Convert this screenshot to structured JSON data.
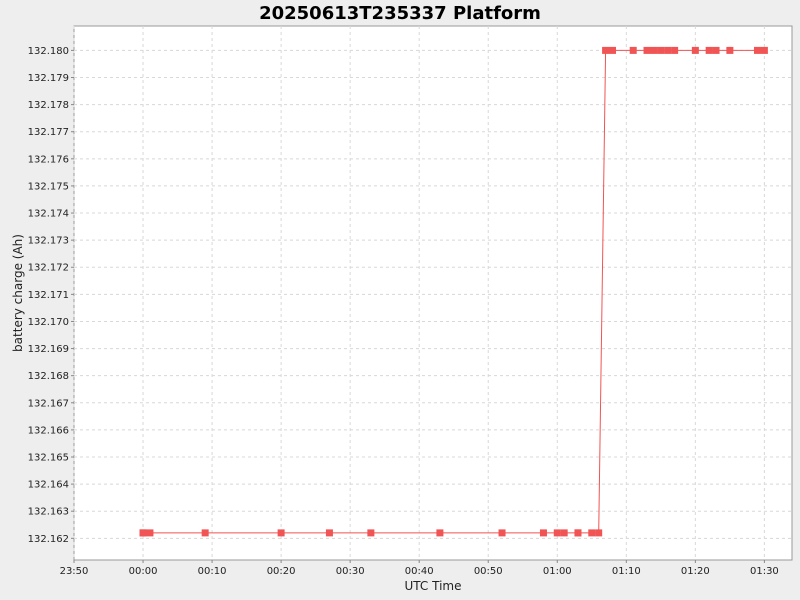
{
  "chart_data": {
    "type": "line",
    "title": "20250613T235337 Platform",
    "xlabel": "UTC Time",
    "ylabel": "battery charge (Ah)",
    "x_ticks": [
      "23:50",
      "00:00",
      "00:10",
      "00:20",
      "00:30",
      "00:40",
      "00:50",
      "01:00",
      "01:10",
      "01:20",
      "01:30"
    ],
    "y_ticks": [
      "132.180",
      "132.179",
      "132.178",
      "132.177",
      "132.176",
      "132.175",
      "132.174",
      "132.173",
      "132.172",
      "132.171",
      "132.170",
      "132.169",
      "132.168",
      "132.167",
      "132.166",
      "132.165",
      "132.164",
      "132.163",
      "132.162"
    ],
    "x_range": [
      "23:50",
      "01:34"
    ],
    "y_range": [
      132.1612,
      132.1809
    ],
    "grid": true,
    "legend": "none",
    "series": [
      {
        "color": "#f05454",
        "marker": "square",
        "x": [
          "00:00",
          "00:00",
          "00:01",
          "00:09",
          "00:20",
          "00:27",
          "00:33",
          "00:43",
          "00:52",
          "00:58",
          "01:00",
          "01:01",
          "01:03",
          "01:03",
          "01:05",
          "01:06",
          "01:07",
          "01:08",
          "01:11",
          "01:13",
          "01:14",
          "01:15",
          "01:16",
          "01:17",
          "01:20",
          "01:22",
          "01:23",
          "01:25",
          "01:29",
          "01:30"
        ],
        "y": [
          132.1622,
          132.1622,
          132.1622,
          132.1622,
          132.1622,
          132.1622,
          132.1622,
          132.1622,
          132.1622,
          132.1622,
          132.1622,
          132.1622,
          132.1622,
          132.1622,
          132.1622,
          132.1622,
          132.18,
          132.18,
          132.18,
          132.18,
          132.18,
          132.18,
          132.18,
          132.18,
          132.18,
          132.18,
          132.18,
          132.18,
          132.18,
          132.18
        ]
      }
    ]
  }
}
